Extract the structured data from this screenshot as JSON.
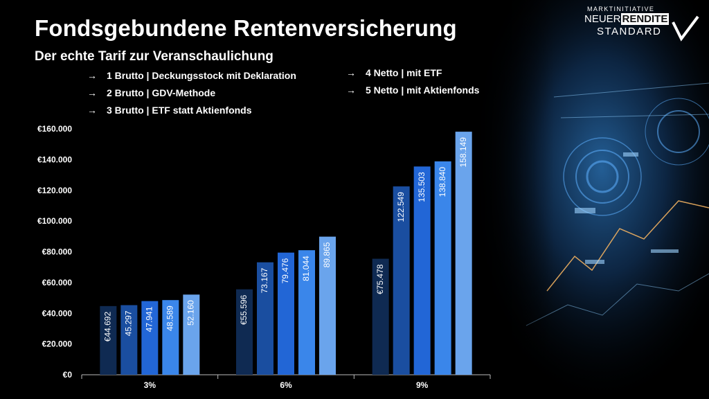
{
  "title": "Fondsgebundene Rentenversicherung",
  "subtitle": "Der echte Tarif zur Veranschaulichung",
  "legend": {
    "arrow": "→",
    "left": [
      "1 Brutto | Deckungsstock mit Deklaration",
      "2 Brutto | GDV-Methode",
      "3 Brutto | ETF statt Aktienfonds"
    ],
    "right": [
      "4 Netto | mit ETF",
      "5 Netto | mit Aktienfonds"
    ]
  },
  "logo": {
    "line1": "MARKTINITIATIVE",
    "neuer": "NEUER",
    "rendite": "RENDITE",
    "standard": "STANDARD"
  },
  "colors": {
    "series": [
      "#0f2a52",
      "#1a4ea0",
      "#2266d6",
      "#3a86ea",
      "#6aa4ec"
    ]
  },
  "chart_data": {
    "type": "bar",
    "categories": [
      "3%",
      "6%",
      "9%"
    ],
    "series": [
      {
        "name": "1 Brutto | Deckungsstock mit Deklaration",
        "values": [
          44692,
          55596,
          75478
        ],
        "labels": [
          "€44.692",
          "€55.596",
          "€75.478"
        ]
      },
      {
        "name": "2 Brutto | GDV-Methode",
        "values": [
          45297,
          73167,
          122549
        ],
        "labels": [
          "45.297",
          "73.167",
          "122.549"
        ]
      },
      {
        "name": "3 Brutto | ETF statt Aktienfonds",
        "values": [
          47941,
          79476,
          135503
        ],
        "labels": [
          "47.941",
          "79.476",
          "135.503"
        ]
      },
      {
        "name": "4 Netto | mit ETF",
        "values": [
          48589,
          81044,
          138840
        ],
        "labels": [
          "48.589",
          "81.044",
          "138.840"
        ]
      },
      {
        "name": "5 Netto | mit Aktienfonds",
        "values": [
          52160,
          89865,
          158149
        ],
        "labels": [
          "52.160",
          "89.865",
          "158.149"
        ]
      }
    ],
    "yticks": [
      0,
      20000,
      40000,
      60000,
      80000,
      100000,
      120000,
      140000,
      160000
    ],
    "ytick_labels": [
      "€0",
      "€20.000",
      "€40.000",
      "€60.000",
      "€80.000",
      "€100.000",
      "€120.000",
      "€140.000",
      "€160.000"
    ],
    "ylim": [
      0,
      160000
    ],
    "xlabel": "",
    "ylabel": "",
    "grid": false
  }
}
